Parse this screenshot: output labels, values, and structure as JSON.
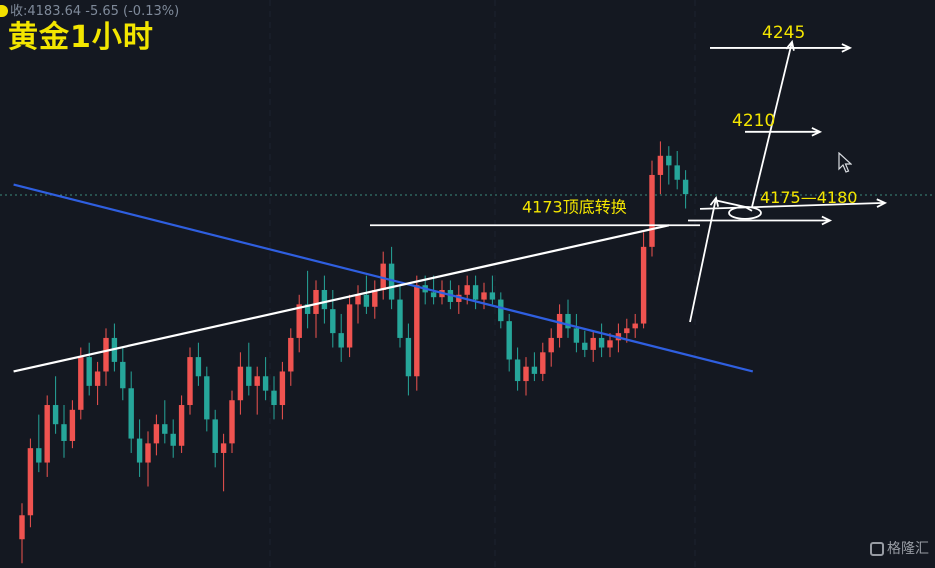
{
  "header": {
    "price_readout": "收:4183.64 -5.65 (-0.13%)"
  },
  "watermark": {
    "text": "格隆汇"
  },
  "colors": {
    "background": "#141821",
    "up": "#ef5350",
    "down": "#26a69a",
    "trend_line": "#2f5fe0",
    "annotation_text": "#f4e600",
    "drawing": "#ffffff"
  },
  "chart_data": {
    "type": "candlestick",
    "title": "黄金1小时",
    "xlabel": "",
    "ylabel": "",
    "ylim": [
      4028,
      4265
    ],
    "grid": true,
    "reference_line": 4183.64,
    "candles": [
      [
        4040,
        4055,
        4030,
        4050
      ],
      [
        4050,
        4082,
        4045,
        4078
      ],
      [
        4078,
        4092,
        4068,
        4072
      ],
      [
        4072,
        4100,
        4066,
        4096
      ],
      [
        4096,
        4108,
        4084,
        4088
      ],
      [
        4088,
        4096,
        4074,
        4081
      ],
      [
        4081,
        4098,
        4078,
        4094
      ],
      [
        4094,
        4120,
        4090,
        4116
      ],
      [
        4116,
        4122,
        4100,
        4104
      ],
      [
        4104,
        4114,
        4096,
        4110
      ],
      [
        4110,
        4128,
        4104,
        4124
      ],
      [
        4124,
        4130,
        4110,
        4114
      ],
      [
        4114,
        4120,
        4098,
        4103
      ],
      [
        4103,
        4110,
        4076,
        4082
      ],
      [
        4082,
        4090,
        4066,
        4072
      ],
      [
        4072,
        4085,
        4062,
        4080
      ],
      [
        4080,
        4092,
        4075,
        4088
      ],
      [
        4088,
        4098,
        4080,
        4084
      ],
      [
        4084,
        4090,
        4074,
        4079
      ],
      [
        4079,
        4100,
        4076,
        4096
      ],
      [
        4096,
        4120,
        4092,
        4116
      ],
      [
        4116,
        4122,
        4104,
        4108
      ],
      [
        4108,
        4112,
        4085,
        4090
      ],
      [
        4090,
        4094,
        4070,
        4076
      ],
      [
        4076,
        4084,
        4060,
        4080
      ],
      [
        4080,
        4102,
        4076,
        4098
      ],
      [
        4098,
        4118,
        4092,
        4112
      ],
      [
        4112,
        4122,
        4100,
        4104
      ],
      [
        4104,
        4112,
        4092,
        4108
      ],
      [
        4108,
        4116,
        4098,
        4102
      ],
      [
        4102,
        4108,
        4090,
        4096
      ],
      [
        4096,
        4114,
        4090,
        4110
      ],
      [
        4110,
        4128,
        4104,
        4124
      ],
      [
        4124,
        4142,
        4118,
        4138
      ],
      [
        4138,
        4152,
        4128,
        4134
      ],
      [
        4134,
        4148,
        4124,
        4144
      ],
      [
        4144,
        4150,
        4130,
        4136
      ],
      [
        4136,
        4144,
        4120,
        4126
      ],
      [
        4126,
        4134,
        4114,
        4120
      ],
      [
        4120,
        4142,
        4116,
        4138
      ],
      [
        4138,
        4146,
        4130,
        4142
      ],
      [
        4142,
        4150,
        4134,
        4137
      ],
      [
        4137,
        4148,
        4132,
        4144
      ],
      [
        4144,
        4160,
        4140,
        4155
      ],
      [
        4155,
        4162,
        4136,
        4140
      ],
      [
        4140,
        4146,
        4120,
        4124
      ],
      [
        4124,
        4130,
        4100,
        4108
      ],
      [
        4108,
        4150,
        4102,
        4146
      ],
      [
        4146,
        4150,
        4138,
        4143
      ],
      [
        4143,
        4150,
        4138,
        4141
      ],
      [
        4141,
        4148,
        4138,
        4144
      ],
      [
        4144,
        4148,
        4136,
        4139
      ],
      [
        4139,
        4146,
        4134,
        4142
      ],
      [
        4142,
        4150,
        4138,
        4146
      ],
      [
        4146,
        4150,
        4136,
        4140
      ],
      [
        4140,
        4147,
        4136,
        4143
      ],
      [
        4143,
        4150,
        4138,
        4140
      ],
      [
        4140,
        4143,
        4128,
        4131
      ],
      [
        4131,
        4134,
        4110,
        4115
      ],
      [
        4115,
        4120,
        4102,
        4106
      ],
      [
        4106,
        4116,
        4100,
        4112
      ],
      [
        4112,
        4118,
        4106,
        4109
      ],
      [
        4109,
        4122,
        4106,
        4118
      ],
      [
        4118,
        4128,
        4112,
        4124
      ],
      [
        4124,
        4138,
        4120,
        4134
      ],
      [
        4134,
        4140,
        4124,
        4128
      ],
      [
        4128,
        4134,
        4118,
        4122
      ],
      [
        4122,
        4127,
        4116,
        4119
      ],
      [
        4119,
        4127,
        4114,
        4124
      ],
      [
        4124,
        4130,
        4116,
        4120
      ],
      [
        4120,
        4126,
        4116,
        4123
      ],
      [
        4123,
        4130,
        4118,
        4126
      ],
      [
        4126,
        4132,
        4122,
        4128
      ],
      [
        4128,
        4134,
        4124,
        4130
      ],
      [
        4130,
        4168,
        4128,
        4162
      ],
      [
        4162,
        4198,
        4158,
        4192
      ],
      [
        4192,
        4206,
        4184,
        4200
      ],
      [
        4200,
        4204,
        4188,
        4196
      ],
      [
        4196,
        4202,
        4186,
        4190
      ],
      [
        4190,
        4194,
        4178,
        4184
      ]
    ],
    "trendlines": [
      {
        "name": "blue_trend",
        "from": [
          -1,
          4188
        ],
        "to": [
          87,
          4110
        ]
      },
      {
        "name": "white_trend",
        "from": [
          -1,
          4110
        ],
        "to": [
          77,
          4171
        ]
      }
    ],
    "annotations": [
      {
        "text": "4245",
        "target": 4245
      },
      {
        "text": "4210",
        "target": 4210
      },
      {
        "text": "4173顶底转换",
        "target": 4173
      },
      {
        "text": "4175—4180",
        "target": 4177
      }
    ]
  }
}
